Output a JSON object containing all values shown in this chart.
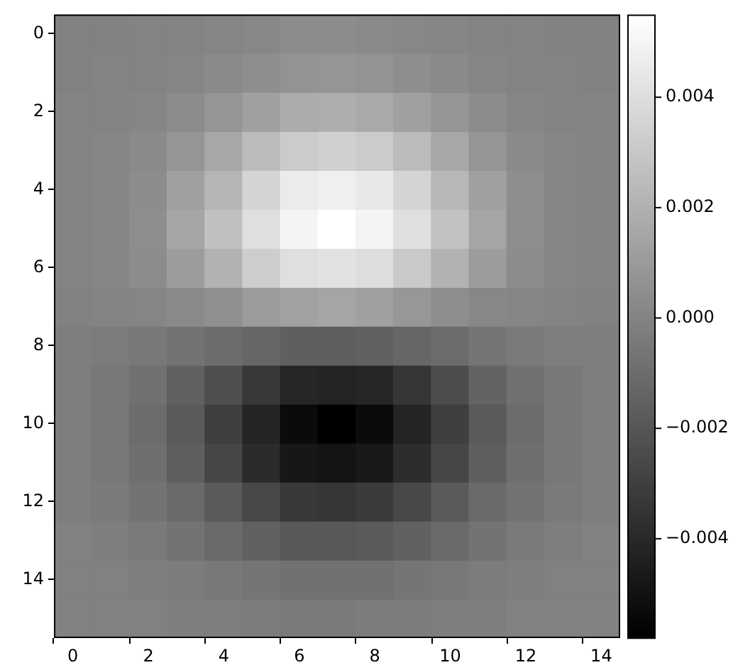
{
  "chart_data": {
    "type": "heatmap",
    "categories": [
      "0",
      null,
      "2",
      null,
      "4",
      null,
      "6",
      null,
      "8",
      null,
      "10",
      null,
      "12",
      null,
      "14"
    ],
    "y_categories": [
      "0",
      null,
      "2",
      null,
      "4",
      null,
      "6",
      null,
      "8",
      null,
      "10",
      null,
      "12",
      null,
      "14",
      null
    ],
    "cells": [
      [
        -0.0001,
        -0.0001,
        0,
        0,
        0.0001,
        0.0002,
        0.0004,
        0.0004,
        0.0003,
        0.0002,
        0.0001,
        0,
        0,
        -0.0001,
        -0.0001
      ],
      [
        -0.0001,
        0,
        0,
        0.0001,
        0.0003,
        0.0005,
        0.0007,
        0.0008,
        0.0007,
        0.0005,
        0.0003,
        0.0001,
        0,
        0,
        -0.0001
      ],
      [
        0,
        0,
        0.0001,
        0.0004,
        0.0008,
        0.0013,
        0.0018,
        0.0019,
        0.0017,
        0.0013,
        0.0008,
        0.0004,
        0.0001,
        0,
        0
      ],
      [
        0,
        0.0001,
        0.0003,
        0.0008,
        0.0016,
        0.0025,
        0.0032,
        0.0034,
        0.0032,
        0.0025,
        0.0016,
        0.0008,
        0.0003,
        0.0001,
        0
      ],
      [
        0,
        0.0001,
        0.0004,
        0.0013,
        0.0022,
        0.0036,
        0.0046,
        0.0048,
        0.0045,
        0.0036,
        0.0023,
        0.0013,
        0.0005,
        0.0001,
        0
      ],
      [
        0,
        0.0001,
        0.0005,
        0.0015,
        0.0027,
        0.0041,
        0.005,
        0.0055,
        0.005,
        0.0041,
        0.0028,
        0.0015,
        0.0005,
        0.0001,
        0
      ],
      [
        0,
        0.0001,
        0.0004,
        0.0011,
        0.0021,
        0.0033,
        0.0041,
        0.0042,
        0.004,
        0.0031,
        0.0021,
        0.0011,
        0.0004,
        0.0001,
        0
      ],
      [
        -0.0001,
        0,
        0.0001,
        0.0003,
        0.0006,
        0.0011,
        0.0014,
        0.0015,
        0.0013,
        0.0009,
        0.0005,
        0.0002,
        0.0001,
        0,
        -0.0001
      ],
      [
        -0.0002,
        -0.0003,
        -0.0005,
        -0.0007,
        -0.001,
        -0.0013,
        -0.0016,
        -0.0016,
        -0.0015,
        -0.0013,
        -0.001,
        -0.0006,
        -0.0004,
        -0.0002,
        -0.0002
      ],
      [
        -0.0002,
        -0.0005,
        -0.0008,
        -0.0015,
        -0.0023,
        -0.0033,
        -0.0041,
        -0.0042,
        -0.0041,
        -0.0034,
        -0.0024,
        -0.0014,
        -0.0008,
        -0.0005,
        -0.0002
      ],
      [
        -0.0002,
        -0.0005,
        -0.001,
        -0.0018,
        -0.003,
        -0.0042,
        -0.0053,
        -0.0058,
        -0.0053,
        -0.0042,
        -0.003,
        -0.0018,
        -0.001,
        -0.0005,
        -0.0002
      ],
      [
        -0.0002,
        -0.0005,
        -0.0009,
        -0.0016,
        -0.0027,
        -0.0039,
        -0.0048,
        -0.0049,
        -0.0047,
        -0.0038,
        -0.0027,
        -0.0016,
        -0.0009,
        -0.0005,
        -0.0002
      ],
      [
        -0.0002,
        -0.0004,
        -0.0007,
        -0.0011,
        -0.0018,
        -0.0026,
        -0.0033,
        -0.0034,
        -0.0032,
        -0.0026,
        -0.0018,
        -0.0011,
        -0.0007,
        -0.0004,
        -0.0002
      ],
      [
        -0.0001,
        -0.0002,
        -0.0004,
        -0.0007,
        -0.0011,
        -0.0015,
        -0.0019,
        -0.0019,
        -0.0018,
        -0.0015,
        -0.0011,
        -0.0007,
        -0.0004,
        -0.0002,
        -0.0001
      ],
      [
        -0.0001,
        -0.0001,
        -0.0002,
        -0.0003,
        -0.0005,
        -0.0006,
        -0.0008,
        -0.0008,
        -0.0008,
        -0.0006,
        -0.0005,
        -0.0003,
        -0.0002,
        -0.0001,
        -0.0001
      ],
      [
        -0.0001,
        -0.0001,
        -0.0001,
        -0.0002,
        -0.0002,
        -0.0003,
        -0.0004,
        -0.0004,
        -0.0003,
        -0.0003,
        -0.0002,
        -0.0002,
        -0.0001,
        -0.0001,
        -0.0001
      ]
    ],
    "clim": [
      -0.0058,
      0.0055
    ],
    "cticks": [
      {
        "value": -0.004,
        "label": "−0.004"
      },
      {
        "value": -0.002,
        "label": "−0.002"
      },
      {
        "value": 0,
        "label": "0.000"
      },
      0.002,
      0.004
    ]
  }
}
